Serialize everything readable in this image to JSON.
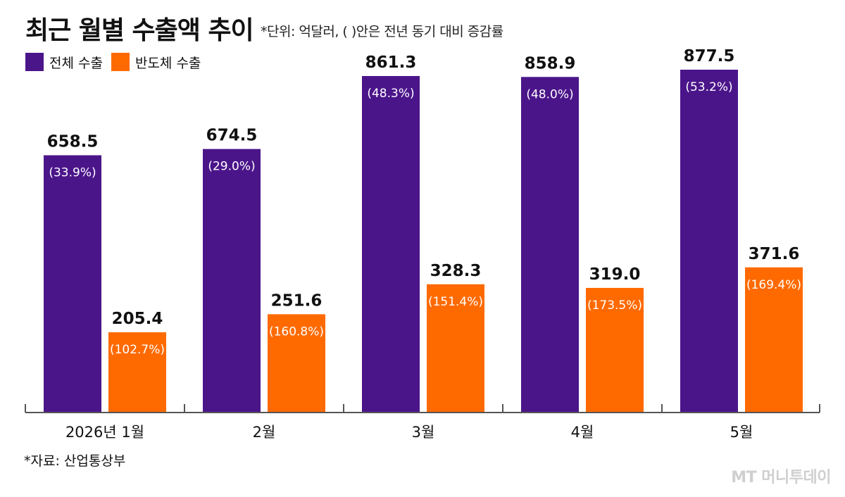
{
  "title": "최근 월별 수출액 추이",
  "subtitle": "*단위: 억달러, ( )안은 전년 동기 대비 증감률",
  "source": "*자료: 산업통상부",
  "watermark": "MT 머니투데이",
  "colors": {
    "total": "#4B158A",
    "semiconductor": "#FF6A00",
    "axis": "#555555"
  },
  "chart_data": {
    "type": "bar",
    "categories": [
      "2026년 1월",
      "2월",
      "3월",
      "4월",
      "5월"
    ],
    "series": [
      {
        "name": "전체 수출",
        "values": [
          658.5,
          674.5,
          861.3,
          858.9,
          877.5
        ],
        "changes": [
          "(33.9%)",
          "(29.0%)",
          "(48.3%)",
          "(48.0%)",
          "(53.2%)"
        ]
      },
      {
        "name": "반도체 수출",
        "values": [
          205.4,
          251.6,
          328.3,
          319.0,
          371.6
        ],
        "changes": [
          "(102.7%)",
          "(160.8%)",
          "(151.4%)",
          "(173.5%)",
          "(169.4%)"
        ]
      }
    ],
    "value_labels": [
      [
        "658.5",
        "674.5",
        "861.3",
        "858.9",
        "877.5"
      ],
      [
        "205.4",
        "251.6",
        "328.3",
        "319.0",
        "371.6"
      ]
    ],
    "ylim": [
      0,
      877.5
    ],
    "grid": false,
    "legend_position": "top-left"
  }
}
